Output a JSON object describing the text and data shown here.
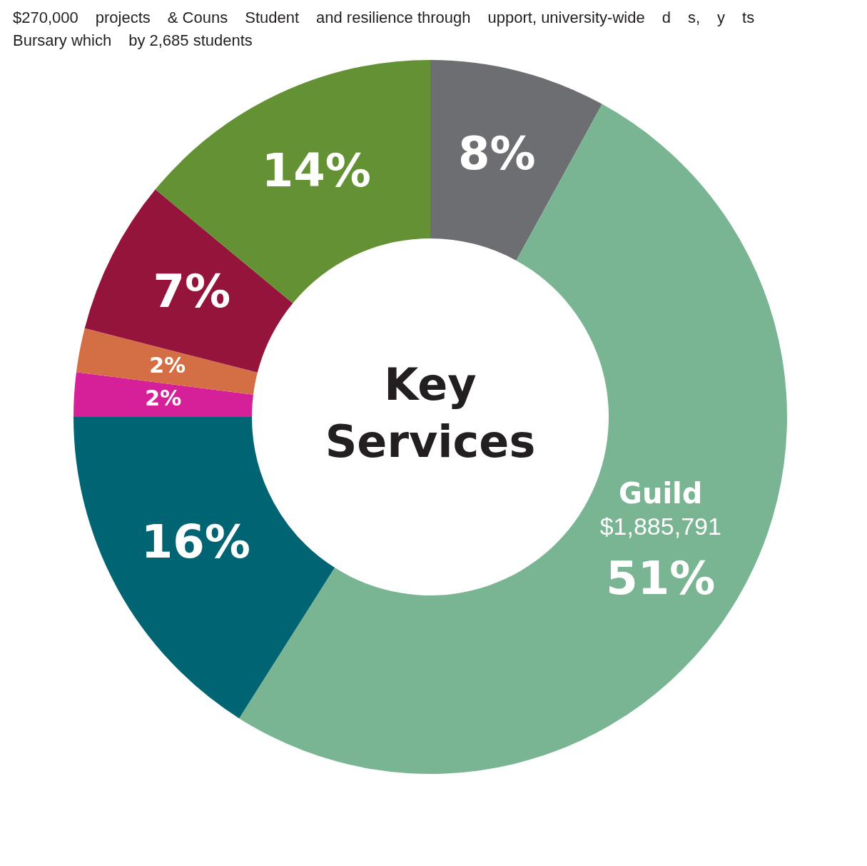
{
  "chart_data": {
    "type": "donut",
    "title": "Key Services",
    "categories": [
      null,
      "Guild",
      null,
      null,
      null,
      null,
      null
    ],
    "values": [
      8,
      51,
      16,
      2,
      2,
      7,
      14
    ],
    "value_labels": [
      "8%",
      "51%",
      "16%",
      "2%",
      "2%",
      "7%",
      "14%"
    ],
    "colors": [
      "#6d6e71",
      "#7ab593",
      "#006472",
      "#d6209a",
      "#d46f45",
      "#95143c",
      "#639133"
    ],
    "annotations": [
      {
        "text": "$1,885,791",
        "x": "Guild"
      },
      "$270,000",
      "projects",
      "& Couns",
      "Student",
      "and resilience through",
      "upport, university-wide",
      "d",
      "s,",
      "y",
      "ts",
      "Bursary which",
      "by 2,685 students"
    ],
    "legend": false
  }
}
